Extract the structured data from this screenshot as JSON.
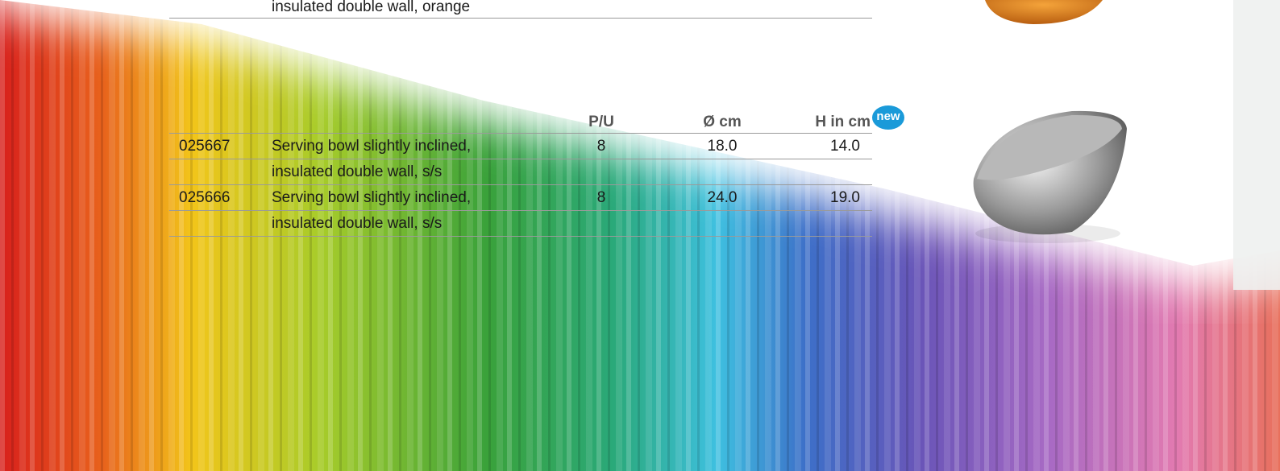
{
  "previous_row": {
    "description_line2": "insulated double wall, orange"
  },
  "table": {
    "header": {
      "pu": "P/U",
      "diameter": "Ø cm",
      "height": "H in cm",
      "badge": "new"
    },
    "rows": [
      {
        "code": "025667",
        "description_line1": "Serving bowl slightly inclined,",
        "description_line2": "insulated double wall, s/s",
        "pu": "8",
        "diameter": "18.0",
        "height": "14.0"
      },
      {
        "code": "025666",
        "description_line1": "Serving bowl slightly inclined,",
        "description_line2": "insulated double wall, s/s",
        "pu": "8",
        "diameter": "24.0",
        "height": "19.0"
      }
    ]
  }
}
